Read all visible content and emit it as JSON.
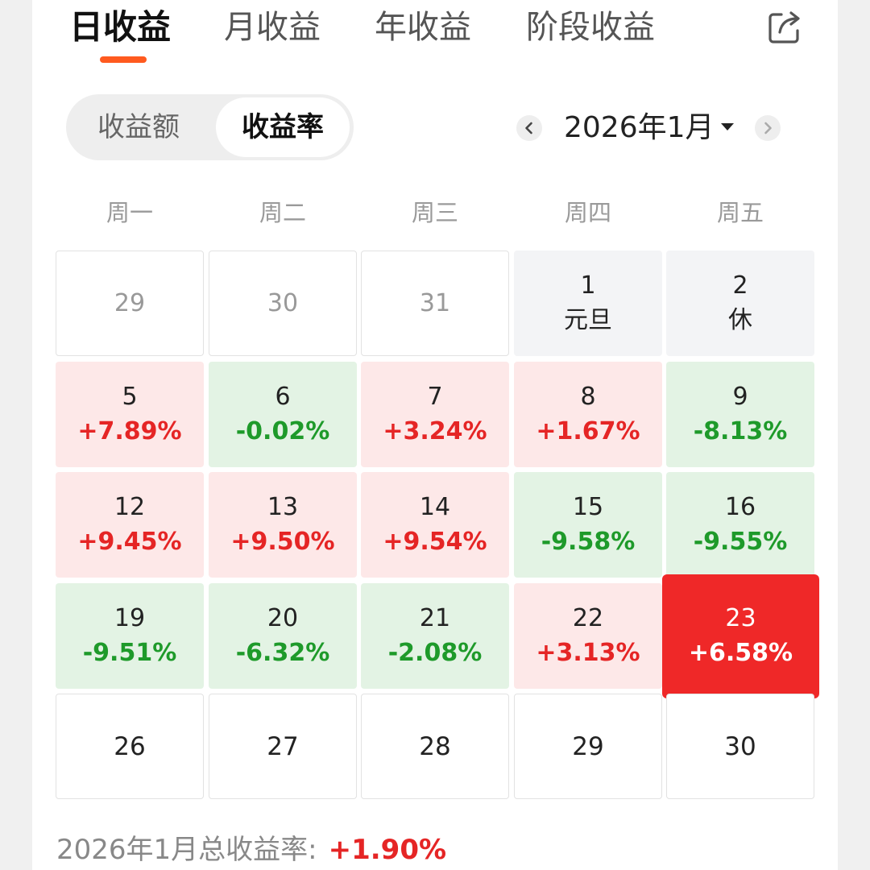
{
  "colors": {
    "accent_orange": "#ff5a1f",
    "positive_red": "#e52525",
    "negative_green": "#1e9a2a",
    "selected_red": "#ef2828",
    "positive_bg": "#fde8e8",
    "negative_bg": "#e3f3e4",
    "holiday_bg": "#f3f4f6"
  },
  "tabs": [
    {
      "label": "日收益",
      "active": true
    },
    {
      "label": "月收益",
      "active": false
    },
    {
      "label": "年收益",
      "active": false
    },
    {
      "label": "阶段收益",
      "active": false
    }
  ],
  "share_icon": "share-export-icon",
  "toggle": {
    "options": [
      {
        "label": "收益额",
        "selected": false
      },
      {
        "label": "收益率",
        "selected": true
      }
    ]
  },
  "month_nav": {
    "label": "2026年1月",
    "prev_icon": "chevron-left-icon",
    "next_icon": "chevron-right-icon",
    "dropdown_icon": "caret-down-icon"
  },
  "weekdays": [
    "周一",
    "周二",
    "周三",
    "周四",
    "周五"
  ],
  "calendar": {
    "weeks": [
      [
        {
          "day": "29",
          "type": "pre"
        },
        {
          "day": "30",
          "type": "pre"
        },
        {
          "day": "31",
          "type": "pre"
        },
        {
          "day": "1",
          "type": "holiday",
          "sub": "元旦"
        },
        {
          "day": "2",
          "type": "holiday",
          "sub": "休"
        }
      ],
      [
        {
          "day": "5",
          "type": "up",
          "sub": "+7.89%"
        },
        {
          "day": "6",
          "type": "down",
          "sub": "-0.02%"
        },
        {
          "day": "7",
          "type": "up",
          "sub": "+3.24%"
        },
        {
          "day": "8",
          "type": "up",
          "sub": "+1.67%"
        },
        {
          "day": "9",
          "type": "down",
          "sub": "-8.13%"
        }
      ],
      [
        {
          "day": "12",
          "type": "up",
          "sub": "+9.45%"
        },
        {
          "day": "13",
          "type": "up",
          "sub": "+9.50%"
        },
        {
          "day": "14",
          "type": "up",
          "sub": "+9.54%"
        },
        {
          "day": "15",
          "type": "down",
          "sub": "-9.58%"
        },
        {
          "day": "16",
          "type": "down",
          "sub": "-9.55%"
        }
      ],
      [
        {
          "day": "19",
          "type": "down",
          "sub": "-9.51%"
        },
        {
          "day": "20",
          "type": "down",
          "sub": "-6.32%"
        },
        {
          "day": "21",
          "type": "down",
          "sub": "-2.08%"
        },
        {
          "day": "22",
          "type": "up",
          "sub": "+3.13%"
        },
        {
          "day": "23",
          "type": "selected",
          "sub": "+6.58%"
        }
      ],
      [
        {
          "day": "26",
          "type": "plain"
        },
        {
          "day": "27",
          "type": "plain"
        },
        {
          "day": "28",
          "type": "plain"
        },
        {
          "day": "29",
          "type": "plain"
        },
        {
          "day": "30",
          "type": "plain"
        }
      ]
    ]
  },
  "summary": {
    "label": "2026年1月总收益率:",
    "value": "+1.90%"
  }
}
